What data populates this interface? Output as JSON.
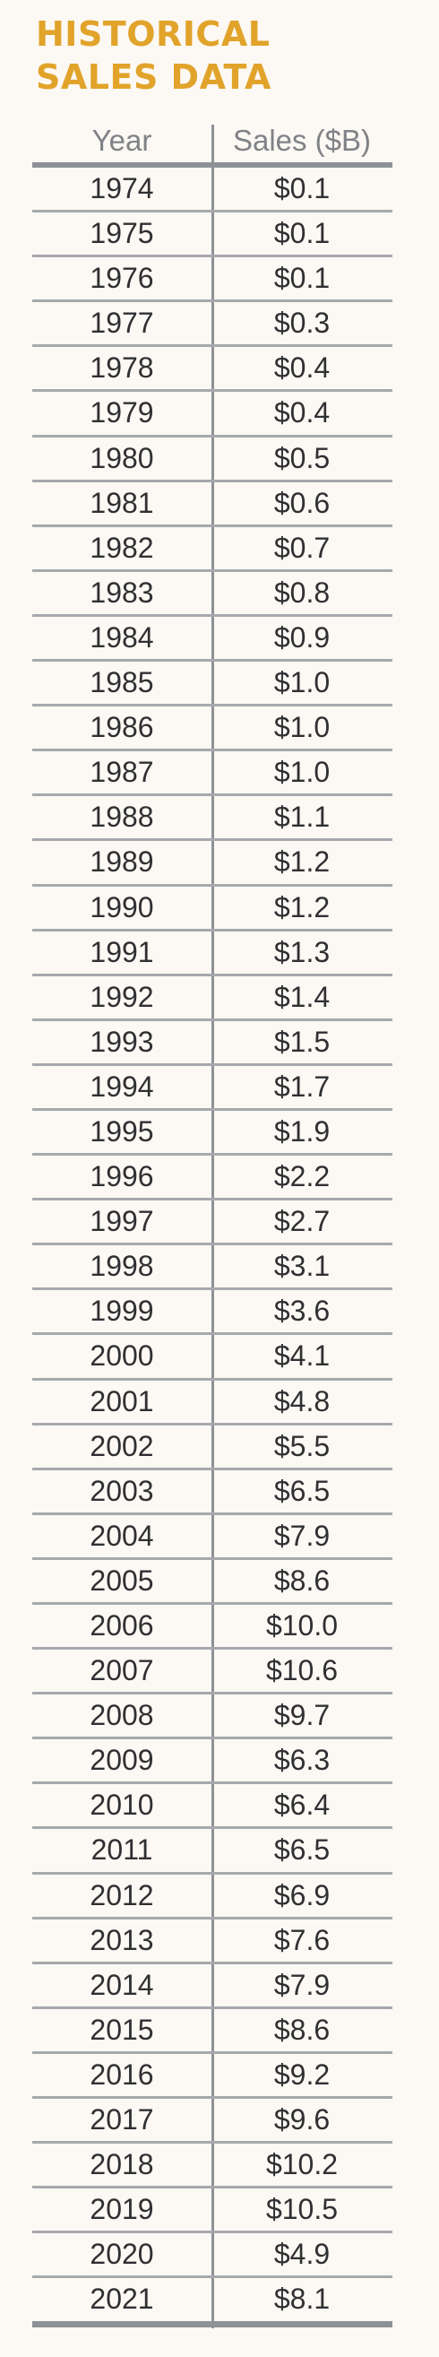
{
  "title": {
    "line1": "HISTORICAL",
    "line2": "SALES DATA"
  },
  "table": {
    "headers": {
      "year": "Year",
      "sales": "Sales ($B)"
    },
    "rows": [
      {
        "year": "1974",
        "sales": "$0.1"
      },
      {
        "year": "1975",
        "sales": "$0.1"
      },
      {
        "year": "1976",
        "sales": "$0.1"
      },
      {
        "year": "1977",
        "sales": "$0.3"
      },
      {
        "year": "1978",
        "sales": "$0.4"
      },
      {
        "year": "1979",
        "sales": "$0.4"
      },
      {
        "year": "1980",
        "sales": "$0.5"
      },
      {
        "year": "1981",
        "sales": "$0.6"
      },
      {
        "year": "1982",
        "sales": "$0.7"
      },
      {
        "year": "1983",
        "sales": "$0.8"
      },
      {
        "year": "1984",
        "sales": "$0.9"
      },
      {
        "year": "1985",
        "sales": "$1.0"
      },
      {
        "year": "1986",
        "sales": "$1.0"
      },
      {
        "year": "1987",
        "sales": "$1.0"
      },
      {
        "year": "1988",
        "sales": "$1.1"
      },
      {
        "year": "1989",
        "sales": "$1.2"
      },
      {
        "year": "1990",
        "sales": "$1.2"
      },
      {
        "year": "1991",
        "sales": "$1.3"
      },
      {
        "year": "1992",
        "sales": "$1.4"
      },
      {
        "year": "1993",
        "sales": "$1.5"
      },
      {
        "year": "1994",
        "sales": "$1.7"
      },
      {
        "year": "1995",
        "sales": "$1.9"
      },
      {
        "year": "1996",
        "sales": "$2.2"
      },
      {
        "year": "1997",
        "sales": "$2.7"
      },
      {
        "year": "1998",
        "sales": "$3.1"
      },
      {
        "year": "1999",
        "sales": "$3.6"
      },
      {
        "year": "2000",
        "sales": "$4.1"
      },
      {
        "year": "2001",
        "sales": "$4.8"
      },
      {
        "year": "2002",
        "sales": "$5.5"
      },
      {
        "year": "2003",
        "sales": "$6.5"
      },
      {
        "year": "2004",
        "sales": "$7.9"
      },
      {
        "year": "2005",
        "sales": "$8.6"
      },
      {
        "year": "2006",
        "sales": "$10.0"
      },
      {
        "year": "2007",
        "sales": "$10.6"
      },
      {
        "year": "2008",
        "sales": "$9.7"
      },
      {
        "year": "2009",
        "sales": "$6.3"
      },
      {
        "year": "2010",
        "sales": "$6.4"
      },
      {
        "year": "2011",
        "sales": "$6.5"
      },
      {
        "year": "2012",
        "sales": "$6.9"
      },
      {
        "year": "2013",
        "sales": "$7.6"
      },
      {
        "year": "2014",
        "sales": "$7.9"
      },
      {
        "year": "2015",
        "sales": "$8.6"
      },
      {
        "year": "2016",
        "sales": "$9.2"
      },
      {
        "year": "2017",
        "sales": "$9.6"
      },
      {
        "year": "2018",
        "sales": "$10.2"
      },
      {
        "year": "2019",
        "sales": "$10.5"
      },
      {
        "year": "2020",
        "sales": "$4.9"
      },
      {
        "year": "2021",
        "sales": "$8.1"
      }
    ]
  },
  "colors": {
    "title": "#e1a32a",
    "background": "#fcf8f3",
    "rule": "#8e9196",
    "text": "#2f3033",
    "header_text": "#7f8287"
  }
}
